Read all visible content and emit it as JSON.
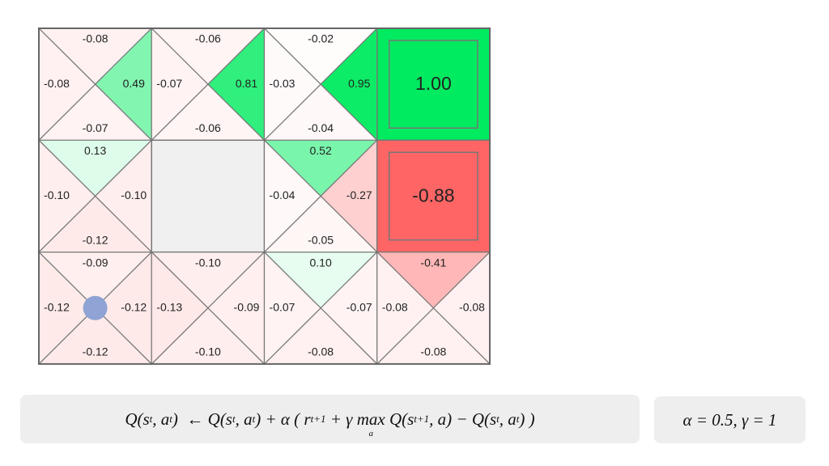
{
  "grid": {
    "rows": [
      [
        {
          "up": "-0.08",
          "left": "-0.08",
          "right": "0.49",
          "down": "-0.07"
        },
        {
          "up": "-0.06",
          "left": "-0.07",
          "right": "0.81",
          "down": "-0.06"
        },
        {
          "up": "-0.02",
          "left": "-0.03",
          "right": "0.95",
          "down": "-0.04"
        },
        {
          "terminal": "1.00"
        }
      ],
      [
        {
          "up": "0.13",
          "left": "-0.10",
          "right": "-0.10",
          "down": "-0.12"
        },
        {
          "wall": true
        },
        {
          "up": "0.52",
          "left": "-0.04",
          "right": "-0.27",
          "down": "-0.05"
        },
        {
          "terminal": "-0.88"
        }
      ],
      [
        {
          "up": "-0.09",
          "left": "-0.12",
          "right": "-0.12",
          "down": "-0.12"
        },
        {
          "up": "-0.10",
          "left": "-0.13",
          "right": "-0.09",
          "down": "-0.10"
        },
        {
          "up": "0.10",
          "left": "-0.07",
          "right": "-0.07",
          "down": "-0.08"
        },
        {
          "up": "-0.41",
          "left": "-0.08",
          "right": "-0.08",
          "down": "-0.08"
        }
      ]
    ],
    "agent": {
      "row": 2,
      "col": 0
    }
  },
  "formula": [
    "Q(s",
    {
      "sub": "t"
    },
    ", a",
    {
      "sub": "t"
    },
    ")  ← Q(s",
    {
      "sub": "t"
    },
    ", a",
    {
      "sub": "t"
    },
    ") + α ( r",
    {
      "sub": "t+1"
    },
    " + γ ",
    {
      "op": "max",
      "under": "a"
    },
    " Q(s",
    {
      "sub": "t+1"
    },
    ", a) − Q(s",
    {
      "sub": "t"
    },
    ", a",
    {
      "sub": "t"
    },
    ") )"
  ],
  "params": "α = 0.5, γ = 1"
}
